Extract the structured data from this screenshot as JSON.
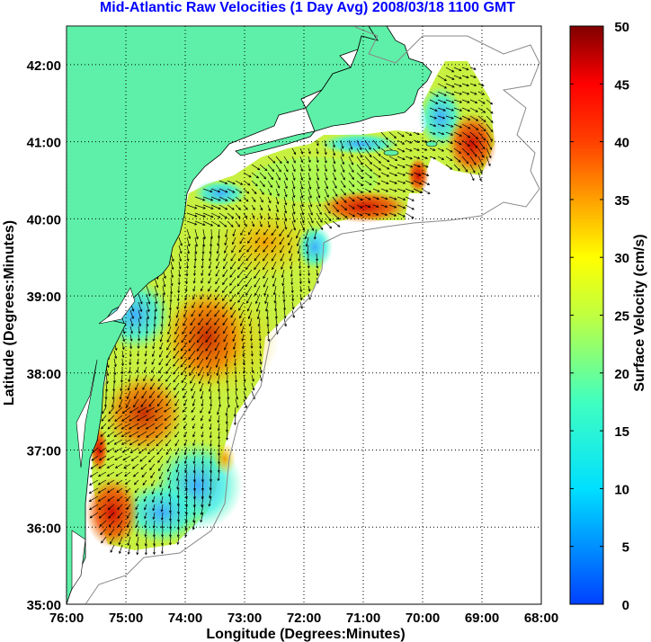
{
  "title": "Mid-Atlantic Raw Velocities (1 Day Avg) 2008/03/18 1100 GMT",
  "map": {
    "xlabel": "Longitude (Degrees:Minutes)",
    "ylabel": "Latitude (Degrees:Minutes)",
    "lon_ticks": [
      "76:00",
      "75:00",
      "74:00",
      "73:00",
      "72:00",
      "71:00",
      "70:00",
      "69:00",
      "68:00"
    ],
    "lat_ticks": [
      "35:00",
      "36:00",
      "37:00",
      "38:00",
      "39:00",
      "40:00",
      "41:00",
      "42:00"
    ],
    "lon_range": [
      -76,
      -68
    ],
    "lat_range": [
      35,
      42.5
    ],
    "land_color": "#5ef0a8",
    "grid": "dotted"
  },
  "colorbar": {
    "label": "Surface Velocity (cm/s)",
    "ticks": [
      "0",
      "5",
      "10",
      "15",
      "20",
      "25",
      "30",
      "35",
      "40",
      "45",
      "50"
    ],
    "range": [
      0,
      50
    ],
    "colormap": "jet"
  },
  "chart_data": {
    "type": "heatmap",
    "title": "Mid-Atlantic Raw Velocities (1 Day Avg) 2008/03/18 1100 GMT",
    "xlabel": "Longitude (Degrees:Minutes)",
    "ylabel": "Latitude (Degrees:Minutes)",
    "xlim": [
      -76,
      -68
    ],
    "ylim": [
      35,
      42.5
    ],
    "colorbar_range": [
      0,
      50
    ],
    "colorbar_label": "Surface Velocity (cm/s)",
    "regions": [
      {
        "lon": -73.7,
        "lat": 38.2,
        "speed": 40
      },
      {
        "lon": -74.8,
        "lat": 35.9,
        "speed": 45
      },
      {
        "lon": -71.0,
        "lat": 40.1,
        "speed": 42
      },
      {
        "lon": -69.0,
        "lat": 40.8,
        "speed": 45
      },
      {
        "lon": -72.6,
        "lat": 39.3,
        "speed": 30
      },
      {
        "lon": -74.5,
        "lat": 37.7,
        "speed": 35
      },
      {
        "lon": -73.9,
        "lat": 36.8,
        "speed": 12
      },
      {
        "lon": -72.0,
        "lat": 41.0,
        "speed": 12
      },
      {
        "lon": -74.3,
        "lat": 39.9,
        "speed": 15
      }
    ]
  }
}
